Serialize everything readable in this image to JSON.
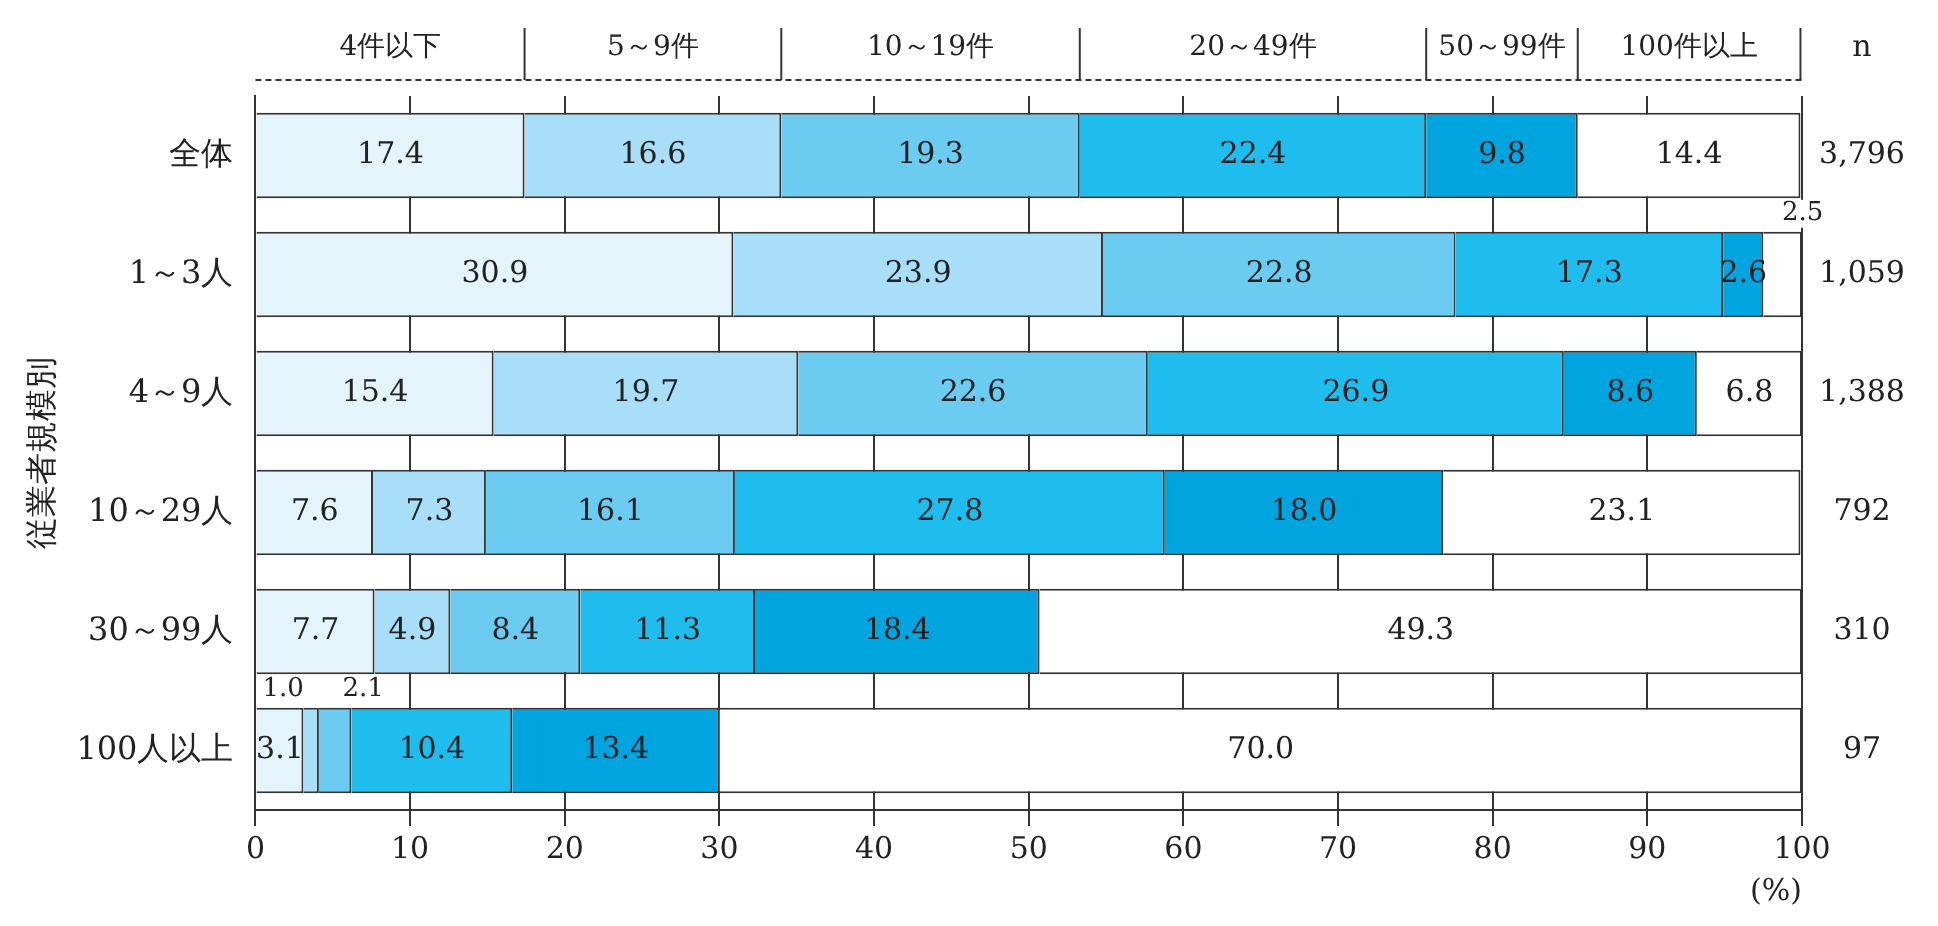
{
  "chart_data": {
    "type": "bar",
    "orientation": "horizontal",
    "stacked": true,
    "categories": [
      "全体",
      "1～3人",
      "4～9人",
      "10～29人",
      "30～99人",
      "100人以上"
    ],
    "series": [
      {
        "name": "4件以下",
        "color": "#e3f4fb",
        "values": [
          17.4,
          30.9,
          15.4,
          7.6,
          7.7,
          3.1
        ],
        "value_labels": [
          "17.4",
          "30.9",
          "15.4",
          "7.6",
          "7.7",
          "3.1"
        ]
      },
      {
        "name": "5～9件",
        "color": "#a8def7",
        "values": [
          16.6,
          23.9,
          19.7,
          7.3,
          4.9,
          1.0
        ],
        "value_labels": [
          "16.6",
          "23.9",
          "19.7",
          "7.3",
          "4.9",
          "1.0"
        ]
      },
      {
        "name": "10～19件",
        "color": "#6ccbf0",
        "values": [
          19.3,
          22.8,
          22.6,
          16.1,
          8.4,
          2.1
        ],
        "value_labels": [
          "19.3",
          "22.8",
          "22.6",
          "16.1",
          "8.4",
          "2.1"
        ]
      },
      {
        "name": "20～49件",
        "color": "#1fbdee",
        "values": [
          22.4,
          17.3,
          26.9,
          27.8,
          11.3,
          10.4
        ],
        "value_labels": [
          "22.4",
          "17.3",
          "26.9",
          "27.8",
          "11.3",
          "10.4"
        ]
      },
      {
        "name": "50～99件",
        "color": "#00a5e0",
        "values": [
          9.8,
          2.6,
          8.6,
          18.0,
          18.4,
          13.4
        ],
        "value_labels": [
          "9.8",
          "2.6",
          "8.6",
          "18.0",
          "18.4",
          "13.4"
        ]
      },
      {
        "name": "100件以上",
        "color": "#ffffff",
        "values": [
          14.4,
          2.5,
          6.8,
          23.1,
          49.3,
          70.0
        ],
        "value_labels": [
          "14.4",
          "2.5",
          "6.8",
          "23.1",
          "49.3",
          "70.0"
        ]
      }
    ],
    "xlim": [
      0,
      100
    ],
    "xticks": [
      0,
      10,
      20,
      30,
      40,
      50,
      60,
      70,
      80,
      90,
      100
    ],
    "xlabel": "(%)",
    "ylabel": "従業者規模別",
    "grid": "x",
    "legend": "top",
    "annotations": [
      "n",
      "3,796",
      "1,059",
      "1,388",
      "792",
      "310",
      "97"
    ]
  }
}
